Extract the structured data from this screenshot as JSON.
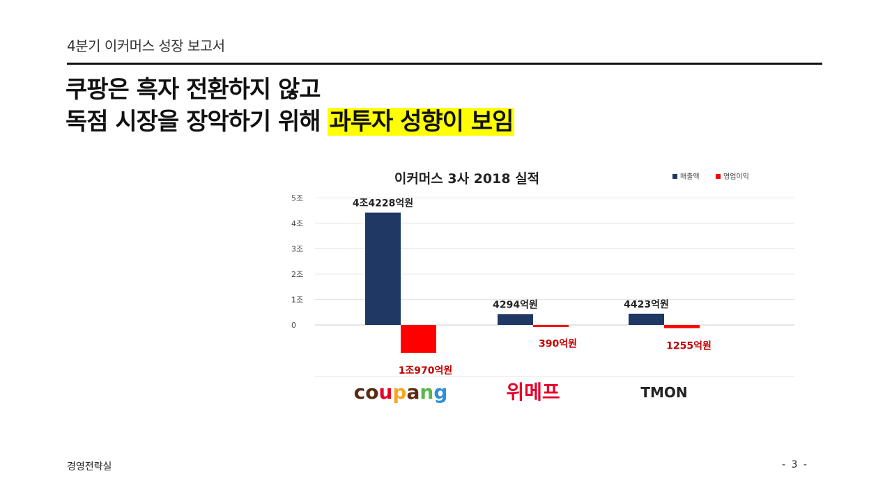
{
  "header": {
    "title": "4분기 이커머스 성장 보고서"
  },
  "headline": {
    "line1": "쿠팡은 흑자 전환하지 않고",
    "line2_prefix": "독점 시장을 장악하기 위해 ",
    "line2_highlight": "과투자 성향이 보임"
  },
  "chart_data": {
    "type": "bar",
    "title": "이커머스 3사 2018 실적",
    "categories": [
      "coupang",
      "위메프",
      "TMON"
    ],
    "series": [
      {
        "name": "매출액",
        "color": "#1f3864",
        "values": [
          4.4228,
          0.4294,
          0.4423
        ],
        "labels": [
          "4조4228억원",
          "4294억원",
          "4423억원"
        ]
      },
      {
        "name": "영업이익",
        "color": "#ff0000",
        "values": [
          -1.097,
          -0.039,
          -0.1255
        ],
        "labels": [
          "1조970억원",
          "390억원",
          "1255억원"
        ]
      }
    ],
    "yticks": [
      {
        "value": 5,
        "label": "5조"
      },
      {
        "value": 4,
        "label": "4조"
      },
      {
        "value": 3,
        "label": "3조"
      },
      {
        "value": 2,
        "label": "2조"
      },
      {
        "value": 1,
        "label": "1조"
      },
      {
        "value": 0,
        "label": "0"
      }
    ],
    "ylim": [
      -1.5,
      5
    ],
    "grid": true,
    "legend_position": "top-right"
  },
  "brand_colors": {
    "coupang": "#5a2b14",
    "wemakeprice": "#e4002b",
    "tmon": "#222222"
  },
  "footer": {
    "left": "경영전략실",
    "page": "- 3 -"
  }
}
